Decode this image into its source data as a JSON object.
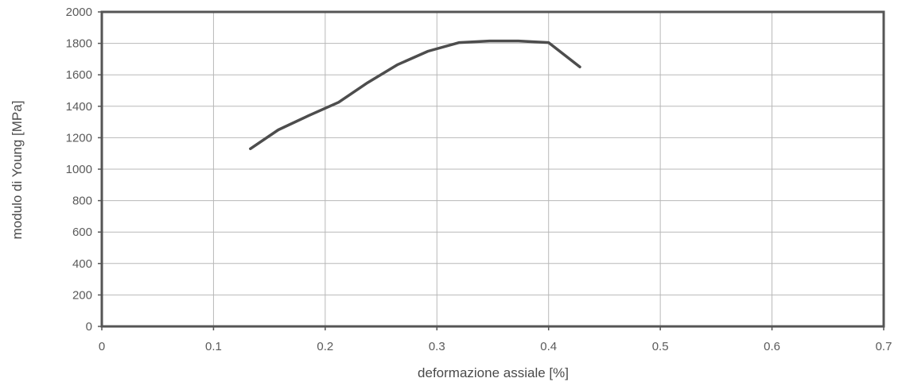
{
  "chart_data": {
    "type": "line",
    "title": "",
    "xlabel": "deformazione assiale [%]",
    "ylabel": "modulo di Young [MPa]",
    "xlim": [
      0,
      0.7
    ],
    "ylim": [
      0,
      2000
    ],
    "x_ticks": [
      "0",
      "0.1",
      "0.2",
      "0.3",
      "0.4",
      "0.5",
      "0.6",
      "0.7"
    ],
    "y_ticks": [
      "0",
      "200",
      "400",
      "600",
      "800",
      "1000",
      "1200",
      "1400",
      "1600",
      "1800",
      "2000"
    ],
    "grid": true,
    "legend": "none",
    "series": [
      {
        "x": [
          0.133,
          0.158,
          0.185,
          0.212,
          0.238,
          0.265,
          0.292,
          0.32,
          0.347,
          0.373,
          0.4,
          0.428
        ],
        "y": [
          1130,
          1250,
          1340,
          1425,
          1550,
          1665,
          1750,
          1805,
          1815,
          1815,
          1805,
          1650
        ]
      }
    ],
    "colors": {
      "line": "#4d4d4d",
      "grid": "#b8b8b8",
      "frame": "#555555"
    }
  }
}
